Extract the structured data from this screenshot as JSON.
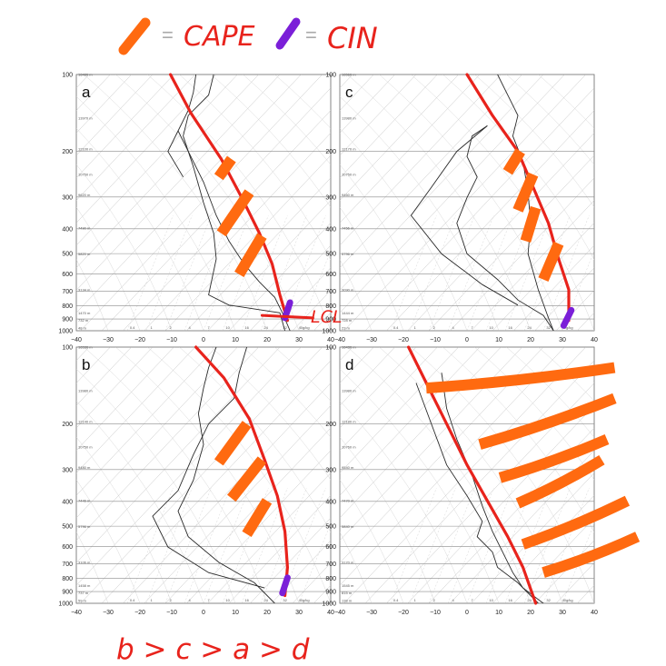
{
  "legend": {
    "cape_label": "CAPE",
    "cin_label": "CIN",
    "cape_color": "#ff6a10",
    "cin_color": "#7b1fd8",
    "equals": "="
  },
  "lcl_label": "LCL",
  "ranking": "b > c > a > d",
  "colors": {
    "annotation": "#e8231c",
    "sounding": "#2a2a2a",
    "grid": "#c4c4c4"
  },
  "axis": {
    "pressure_ticks": [
      "100",
      "200",
      "300",
      "400",
      "500",
      "600",
      "700",
      "800",
      "900",
      "1000"
    ],
    "temp_ticks": [
      "−40",
      "−30",
      "−20",
      "−10",
      "0",
      "10",
      "20",
      "30",
      "40"
    ],
    "mixing_ratio_ticks": [
      "0.4",
      "1",
      "2",
      "4",
      "7",
      "10",
      "16",
      "24",
      "32",
      "40g/kg"
    ]
  },
  "panels": [
    {
      "label": "a",
      "heights": [
        "16480 m",
        "13970 m",
        "12100 m",
        "10750 m",
        "9620 m",
        "7490 m",
        "5820 m",
        "3134 m",
        "1470 m",
        "732 m",
        "48 m"
      ]
    },
    {
      "label": "c",
      "heights": [
        "16560 m",
        "13980 m",
        "12170 m",
        "10750 m",
        "9460 m",
        "7456 m",
        "5796 m",
        "3090 m",
        "1444 m",
        "728 m",
        "23 m"
      ]
    },
    {
      "label": "b",
      "heights": [
        "16530 m",
        "13980 m",
        "12140 m",
        "10750 m",
        "9480 m",
        "7446 m",
        "5796 m",
        "3106 m",
        "1458 m",
        "737 m",
        "59 m"
      ]
    },
    {
      "label": "d",
      "heights": [
        "16430 m",
        "13980 m",
        "12180 m",
        "10760 m",
        "9540 m",
        "7470 m",
        "5840 m",
        "3170 m",
        "1545 m",
        "815 m",
        "138 m"
      ]
    }
  ]
}
